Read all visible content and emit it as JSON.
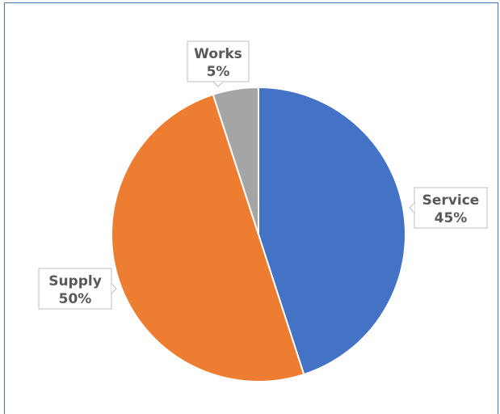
{
  "chart_data": {
    "type": "pie",
    "title": "",
    "slices": [
      {
        "label": "Service",
        "value": 45,
        "pct_label": "45%",
        "color": "#4472c4"
      },
      {
        "label": "Supply",
        "value": 50,
        "pct_label": "50%",
        "color": "#ed7d31"
      },
      {
        "label": "Works",
        "value": 5,
        "pct_label": "5%",
        "color": "#a5a5a5"
      }
    ],
    "start_angle_deg": 0,
    "direction": "clockwise",
    "data_labels": "callout",
    "legend": "none"
  }
}
